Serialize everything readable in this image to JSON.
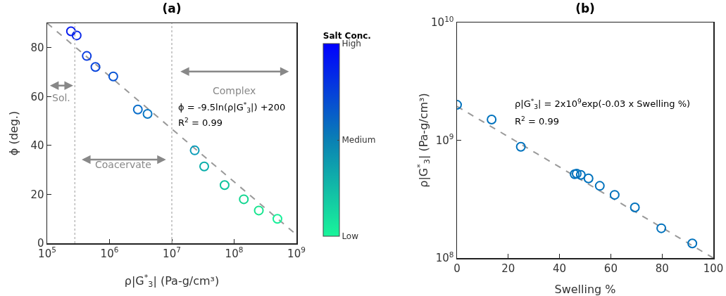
{
  "chart_data": [
    {
      "type": "scatter",
      "title": "(a)",
      "xlabel": "ρ|G$^{*}$$_{3}$| (Pa-g/cm³)",
      "ylabel": "ϕ (deg.)",
      "clabel": "Salt Conc.",
      "log": "x",
      "marker": "circle",
      "grid": false,
      "xlim": [
        100000,
        1000000000
      ],
      "xticks": [
        {
          "value": 100000,
          "label": "10$^{5}$"
        },
        {
          "value": 1000000,
          "label": "10$^{6}$"
        },
        {
          "value": 10000000,
          "label": "10$^{7}$"
        },
        {
          "value": 100000000,
          "label": "10$^{8}$"
        },
        {
          "value": 1000000000,
          "label": "10$^{9}$"
        }
      ],
      "ylim": [
        0,
        90
      ],
      "yticks": [
        0,
        20,
        40,
        60,
        80
      ],
      "clim": [
        0,
        1
      ],
      "cticks": [
        {
          "value": 0,
          "label": "Low"
        },
        {
          "value": 0.5,
          "label": "Medium"
        },
        {
          "value": 1,
          "label": "High"
        }
      ],
      "series": [
        {
          "type": "scatter",
          "x": [
            241000,
            297000,
            432000,
            595000,
            1150000,
            2850000,
            4080000,
            23300000,
            33100000,
            70300000,
            143000000,
            249000000,
            495000000
          ],
          "values": [
            86.7,
            85.0,
            76.6,
            72.1,
            68.2,
            54.7,
            52.9,
            38.0,
            31.4,
            23.8,
            18.0,
            13.4,
            10.0
          ],
          "colors": [
            "#0a1ef0",
            "#0a28e8",
            "#0a3ce0",
            "#0a46dc",
            "#0a55d5",
            "#0a6ecb",
            "#0a78c4",
            "#0a9cb8",
            "#0aaeaa",
            "#0ec49c",
            "#12d690",
            "#16e48e",
            "#19f09a"
          ]
        },
        {
          "type": "line",
          "x": [
            100000,
            1000000000
          ],
          "values": [
            90,
            3.5
          ],
          "color": "#999999",
          "line_style": "dashed",
          "marker": "none"
        }
      ],
      "ref_lines": [
        {
          "axis": "x",
          "value": 278000,
          "color": "#bbbbbb",
          "line_style": "dotted"
        },
        {
          "axis": "x",
          "value": 10000000,
          "color": "#bbbbbb",
          "line_style": "dotted"
        }
      ],
      "annotations": [
        "Sol.",
        "Coacervate",
        "Complex",
        "ϕ = -9.5ln(ρ|G$^{*}$$_{3}$|) +200",
        "R$^{2}$ = 0.99"
      ]
    },
    {
      "type": "scatter",
      "title": "(b)",
      "xlabel": "Swelling %",
      "ylabel": "ρ|G$^{*}$$_{3}$| (Pa-g/cm³)",
      "log": "y",
      "marker": "circle",
      "grid": false,
      "xlim": [
        0,
        100
      ],
      "xticks": [
        0,
        20,
        40,
        60,
        80,
        100
      ],
      "ylim": [
        100000000,
        10000000000
      ],
      "yticks": [
        {
          "value": 100000000,
          "label": "10$^{8}$"
        },
        {
          "value": 1000000000,
          "label": "10$^{9}$"
        },
        {
          "value": 10000000000,
          "label": "10$^{10}$"
        }
      ],
      "series": [
        {
          "type": "scatter",
          "color": "#0072bd",
          "x": [
            0,
            13.5,
            24.9,
            45.9,
            46.7,
            48.3,
            51.3,
            55.7,
            61.5,
            69.4,
            79.7,
            91.8
          ],
          "values": [
            2000000000,
            1500000000,
            880000000,
            515000000,
            520000000,
            508000000,
            474000000,
            410000000,
            344000000,
            269000000,
            179000000,
            133000000
          ]
        },
        {
          "type": "line",
          "x": [
            0,
            100
          ],
          "values": [
            1940000000,
            100000000
          ],
          "color": "#999999",
          "line_style": "dashed",
          "marker": "none"
        }
      ],
      "annotations": [
        "ρ|G$^{*}$$_{3}$| = 2x10$^{9}$exp(-0.03 x Swelling %)",
        "R$^{2}$ = 0.99"
      ]
    }
  ]
}
